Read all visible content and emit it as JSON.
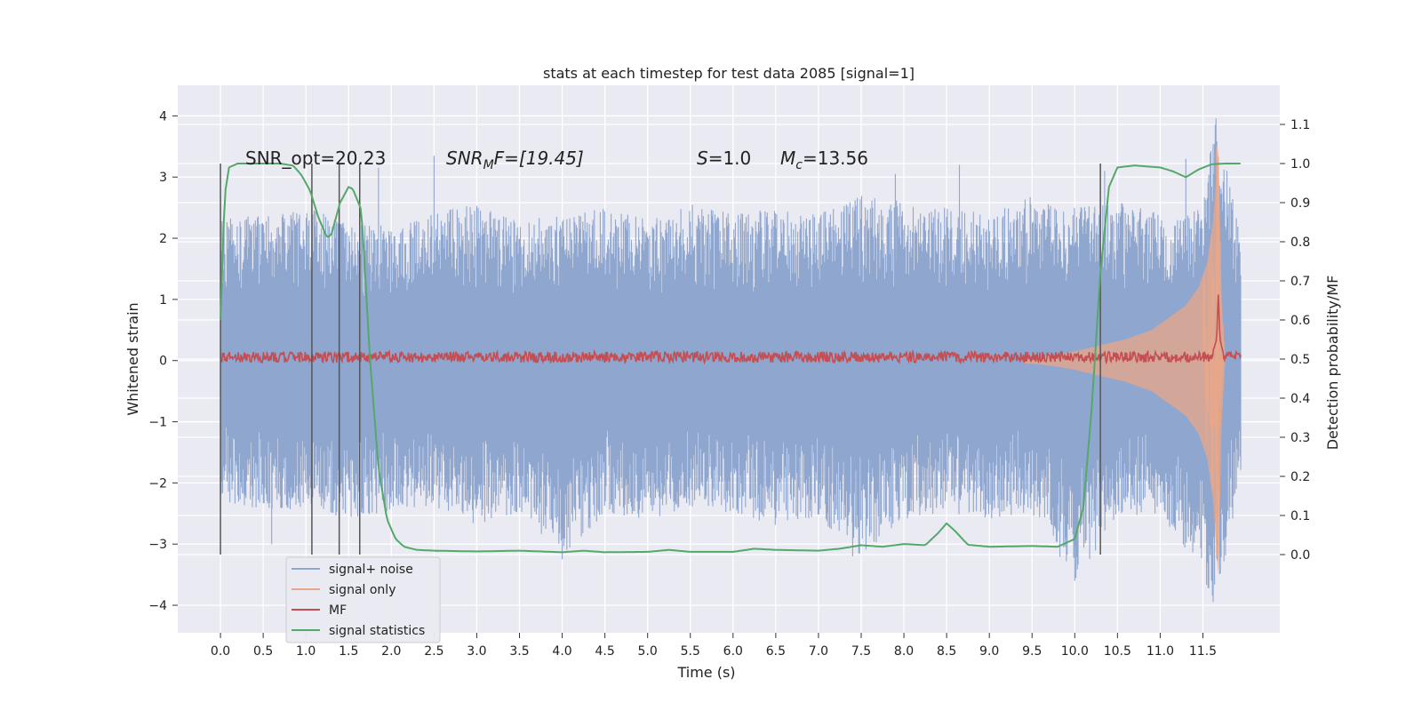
{
  "chart_data": {
    "type": "line",
    "title": "stats at each timestep for test data 2085 [signal=1]",
    "xlabel": "Time (s)",
    "ylabel": "Whitened strain",
    "ylabel_right": "Detection probability/MF",
    "xlim": [
      -0.5,
      12.4
    ],
    "ylim": [
      -4.45,
      4.5
    ],
    "ylim_right": [
      -0.2,
      1.2
    ],
    "x_ticks": [
      0.0,
      0.5,
      1.0,
      1.5,
      2.0,
      2.5,
      3.0,
      3.5,
      4.0,
      4.5,
      5.0,
      5.5,
      6.0,
      6.5,
      7.0,
      7.5,
      8.0,
      8.5,
      9.0,
      9.5,
      10.0,
      10.5,
      11.0,
      11.5
    ],
    "x_tick_labels": [
      "0.0",
      "0.5",
      "1.0",
      "1.5",
      "2.0",
      "2.5",
      "3.0",
      "3.5",
      "4.0",
      "4.5",
      "5.0",
      "5.5",
      "6.0",
      "6.5",
      "7.0",
      "7.5",
      "8.0",
      "8.5",
      "9.0",
      "9.5",
      "10.0",
      "10.5",
      "11.0",
      "11.5"
    ],
    "y_ticks": [
      -4,
      -3,
      -2,
      -1,
      0,
      1,
      2,
      3,
      4
    ],
    "y_tick_labels": [
      "−4",
      "−3",
      "−2",
      "−1",
      "0",
      "1",
      "2",
      "3",
      "4"
    ],
    "y_ticks_right": [
      0.0,
      0.1,
      0.2,
      0.3,
      0.4,
      0.5,
      0.6,
      0.7,
      0.8,
      0.9,
      1.0,
      1.1
    ],
    "y_tick_labels_right": [
      "0.0",
      "0.1",
      "0.2",
      "0.3",
      "0.4",
      "0.5",
      "0.6",
      "0.7",
      "0.8",
      "0.9",
      "1.0",
      "1.1"
    ],
    "grid": true,
    "legend_position": "lower-left",
    "annotations": {
      "snr_opt": "SNR_opt=20.23",
      "snr_mf_label": "SNR",
      "snr_mf_sub": "M",
      "snr_mf_rest": "F=[19.45]",
      "s_label": "S",
      "s_rest": "=1.0",
      "mc_label": "M",
      "mc_sub": "c",
      "mc_rest": "=13.56"
    },
    "series": [
      {
        "name": "signal+ noise",
        "color": "#8fa6cf",
        "axis": "left",
        "description": "whitened noise band",
        "envelope_x": [
          0.0,
          0.5,
          1.0,
          1.5,
          2.0,
          2.5,
          3.0,
          3.5,
          4.0,
          4.5,
          5.0,
          5.5,
          6.0,
          6.5,
          7.0,
          7.5,
          8.0,
          8.5,
          9.0,
          9.5,
          10.0,
          10.5,
          11.0,
          11.5,
          11.65,
          11.95
        ],
        "upper": [
          2.3,
          2.4,
          2.5,
          2.3,
          2.2,
          2.4,
          2.6,
          2.3,
          2.4,
          2.5,
          2.3,
          2.6,
          2.4,
          2.5,
          2.4,
          2.7,
          2.6,
          2.5,
          2.4,
          2.7,
          2.5,
          2.6,
          2.4,
          2.5,
          4.1,
          2.0
        ],
        "lower": [
          -2.3,
          -2.5,
          -2.4,
          -2.6,
          -2.5,
          -2.4,
          -2.7,
          -2.5,
          -3.25,
          -2.5,
          -2.6,
          -2.4,
          -2.5,
          -2.7,
          -2.6,
          -3.2,
          -2.6,
          -2.5,
          -2.6,
          -2.5,
          -3.6,
          -2.6,
          -2.5,
          -3.5,
          -4.1,
          -1.9
        ]
      },
      {
        "name": "signal only",
        "color": "#e8a788",
        "axis": "left",
        "x": [
          0.0,
          9.5,
          9.8,
          10.0,
          10.3,
          10.6,
          10.9,
          11.1,
          11.3,
          11.45,
          11.55,
          11.62,
          11.68,
          11.72,
          11.76
        ],
        "amplitude": [
          0.0,
          0.05,
          0.1,
          0.15,
          0.25,
          0.35,
          0.5,
          0.7,
          0.9,
          1.2,
          1.6,
          2.3,
          3.5,
          1.0,
          0.0
        ]
      },
      {
        "name": "MF",
        "color": "#c44e52",
        "axis": "right",
        "x": [
          0.0,
          11.6,
          11.66,
          11.68,
          11.7,
          11.75,
          11.95
        ],
        "y": [
          0.505,
          0.505,
          0.55,
          0.665,
          0.55,
          0.505,
          0.505
        ]
      },
      {
        "name": "signal statistics",
        "color": "#55a868",
        "axis": "right",
        "x": [
          0.0,
          0.05,
          0.1,
          0.2,
          0.3,
          0.5,
          0.7,
          0.85,
          0.95,
          1.05,
          1.15,
          1.25,
          1.3,
          1.4,
          1.5,
          1.55,
          1.65,
          1.75,
          1.85,
          1.95,
          2.05,
          2.15,
          2.3,
          2.5,
          3.0,
          3.5,
          4.0,
          4.25,
          4.5,
          5.0,
          5.25,
          5.5,
          6.0,
          6.25,
          6.5,
          7.0,
          7.25,
          7.5,
          7.75,
          8.0,
          8.25,
          8.4,
          8.5,
          8.6,
          8.75,
          9.0,
          9.5,
          9.8,
          10.0,
          10.1,
          10.2,
          10.3,
          10.4,
          10.5,
          10.7,
          11.0,
          11.15,
          11.3,
          11.45,
          11.6,
          11.75,
          11.95
        ],
        "y": [
          0.6,
          0.92,
          0.99,
          1.0,
          1.0,
          1.0,
          1.0,
          0.995,
          0.97,
          0.93,
          0.86,
          0.81,
          0.82,
          0.9,
          0.94,
          0.935,
          0.88,
          0.5,
          0.22,
          0.09,
          0.04,
          0.02,
          0.012,
          0.01,
          0.008,
          0.01,
          0.006,
          0.01,
          0.006,
          0.007,
          0.012,
          0.007,
          0.007,
          0.015,
          0.012,
          0.01,
          0.015,
          0.024,
          0.02,
          0.027,
          0.024,
          0.055,
          0.08,
          0.06,
          0.025,
          0.02,
          0.022,
          0.02,
          0.04,
          0.12,
          0.38,
          0.72,
          0.94,
          0.99,
          0.995,
          0.99,
          0.98,
          0.965,
          0.985,
          0.998,
          1.0,
          1.0
        ]
      }
    ],
    "vertical_lines_x": [
      0.0,
      1.07,
      1.39,
      1.63,
      10.3
    ],
    "vertical_lines_range_right": [
      0.0,
      1.0
    ]
  }
}
